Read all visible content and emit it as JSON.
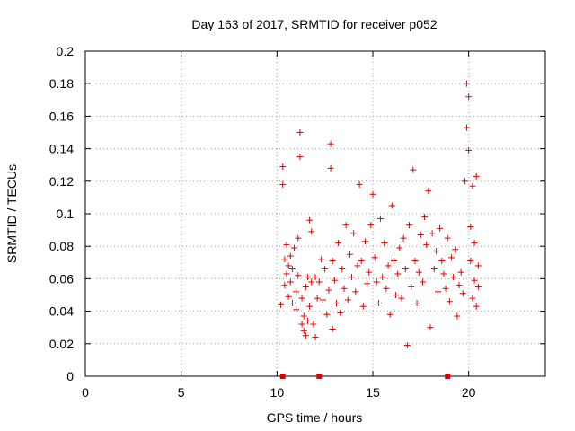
{
  "chart_data": {
    "type": "scatter",
    "title": "Day 163 of 2017, SRMTID for receiver p052",
    "xlabel": "GPS time / hours",
    "ylabel": "SRMTID / TECUs",
    "xlim": [
      0,
      24
    ],
    "ylim": [
      0,
      0.2
    ],
    "xticks": [
      0,
      5,
      10,
      15,
      20
    ],
    "xtick_labels": [
      "0",
      "5",
      "10",
      "15",
      "20"
    ],
    "yticks": [
      0,
      0.02,
      0.04,
      0.06,
      0.08,
      0.1,
      0.12,
      0.14,
      0.16,
      0.18,
      0.2
    ],
    "ytick_labels": [
      "0",
      "0.02",
      "0.04",
      "0.06",
      "0.08",
      "0.1",
      "0.12",
      "0.14",
      "0.16",
      "0.18",
      "0.2"
    ],
    "grid": true,
    "marker": "+",
    "color": "#e00000",
    "zero_markers_x": [
      10.3,
      12.2,
      18.9
    ],
    "series": [
      {
        "name": "p052",
        "x": [
          10.2,
          10.3,
          10.3,
          10.4,
          10.4,
          10.5,
          10.5,
          10.6,
          10.6,
          10.7,
          10.7,
          10.8,
          10.8,
          10.9,
          11.0,
          11.0,
          11.1,
          11.1,
          11.2,
          11.2,
          11.3,
          11.3,
          11.4,
          11.4,
          11.5,
          11.5,
          11.6,
          11.6,
          11.7,
          11.7,
          11.8,
          11.8,
          11.9,
          12.0,
          12.0,
          12.1,
          12.2,
          12.3,
          12.4,
          12.5,
          12.6,
          12.7,
          12.8,
          12.8,
          12.9,
          12.9,
          13.0,
          13.1,
          13.2,
          13.3,
          13.4,
          13.5,
          13.6,
          13.7,
          13.8,
          13.9,
          14.0,
          14.1,
          14.2,
          14.3,
          14.4,
          14.5,
          14.6,
          14.7,
          14.8,
          14.9,
          15.0,
          15.1,
          15.2,
          15.3,
          15.4,
          15.5,
          15.6,
          15.7,
          15.8,
          15.9,
          16.0,
          16.1,
          16.2,
          16.3,
          16.4,
          16.5,
          16.6,
          16.7,
          16.8,
          16.9,
          17.0,
          17.1,
          17.2,
          17.3,
          17.4,
          17.5,
          17.6,
          17.7,
          17.8,
          17.9,
          18.0,
          18.1,
          18.2,
          18.3,
          18.4,
          18.5,
          18.6,
          18.7,
          18.8,
          18.9,
          19.0,
          19.1,
          19.2,
          19.3,
          19.4,
          19.5,
          19.6,
          19.7,
          19.8,
          19.9,
          19.9,
          20.0,
          20.0,
          20.1,
          20.1,
          20.2,
          20.2,
          20.3,
          20.3,
          20.4,
          20.4,
          20.5,
          20.5
        ],
        "y": [
          0.044,
          0.129,
          0.118,
          0.072,
          0.056,
          0.081,
          0.063,
          0.068,
          0.049,
          0.074,
          0.058,
          0.066,
          0.045,
          0.079,
          0.052,
          0.041,
          0.085,
          0.062,
          0.15,
          0.135,
          0.048,
          0.032,
          0.028,
          0.037,
          0.055,
          0.025,
          0.061,
          0.034,
          0.043,
          0.096,
          0.058,
          0.089,
          0.032,
          0.024,
          0.061,
          0.048,
          0.058,
          0.072,
          0.047,
          0.066,
          0.038,
          0.053,
          0.143,
          0.128,
          0.071,
          0.029,
          0.059,
          0.045,
          0.082,
          0.039,
          0.066,
          0.054,
          0.093,
          0.047,
          0.075,
          0.061,
          0.088,
          0.052,
          0.068,
          0.118,
          0.071,
          0.043,
          0.083,
          0.057,
          0.064,
          0.093,
          0.112,
          0.073,
          0.058,
          0.045,
          0.097,
          0.061,
          0.082,
          0.054,
          0.068,
          0.038,
          0.105,
          0.071,
          0.05,
          0.063,
          0.079,
          0.048,
          0.085,
          0.066,
          0.019,
          0.093,
          0.055,
          0.127,
          0.071,
          0.045,
          0.064,
          0.087,
          0.058,
          0.098,
          0.081,
          0.114,
          0.03,
          0.088,
          0.066,
          0.077,
          0.052,
          0.091,
          0.071,
          0.063,
          0.054,
          0.085,
          0.046,
          0.073,
          0.061,
          0.078,
          0.037,
          0.056,
          0.064,
          0.051,
          0.12,
          0.18,
          0.153,
          0.139,
          0.172,
          0.071,
          0.092,
          0.048,
          0.117,
          0.082,
          0.059,
          0.123,
          0.043,
          0.068,
          0.055
        ]
      }
    ]
  }
}
